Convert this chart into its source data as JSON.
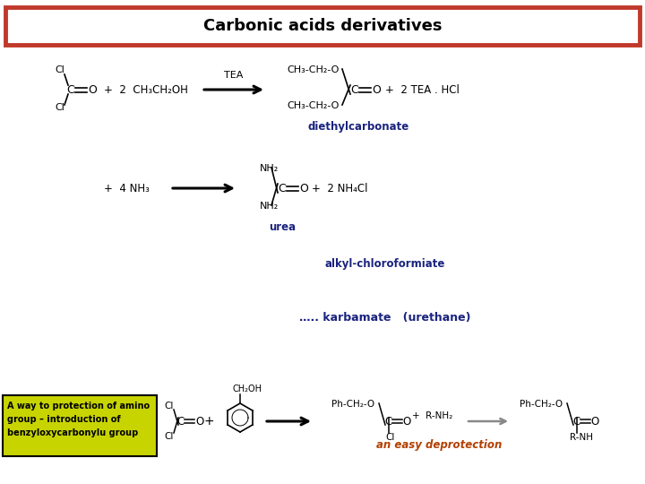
{
  "title": "Carbonic acids derivatives",
  "title_color": "#000000",
  "title_border_color": "#c0392b",
  "bg_color": "#ffffff",
  "label_diethylcarbonate": "diethylcarbonate",
  "label_diethylcarbonate_color": "#1a237e",
  "label_urea": "urea",
  "label_urea_color": "#1a237e",
  "label_alkyl": "alkyl-chloroformiate",
  "label_alkyl_color": "#1a237e",
  "label_karbamate": "….. karbamate   (urethane)",
  "label_karbamate_color": "#1a237e",
  "label_easy": "an easy deprotection",
  "label_easy_color": "#b34000",
  "label_protection": "A way to protection of amino\ngroup – introduction of\nbenzyloxycarbonylu group",
  "label_protection_color": "#000000",
  "label_protection_bg": "#c8d400"
}
